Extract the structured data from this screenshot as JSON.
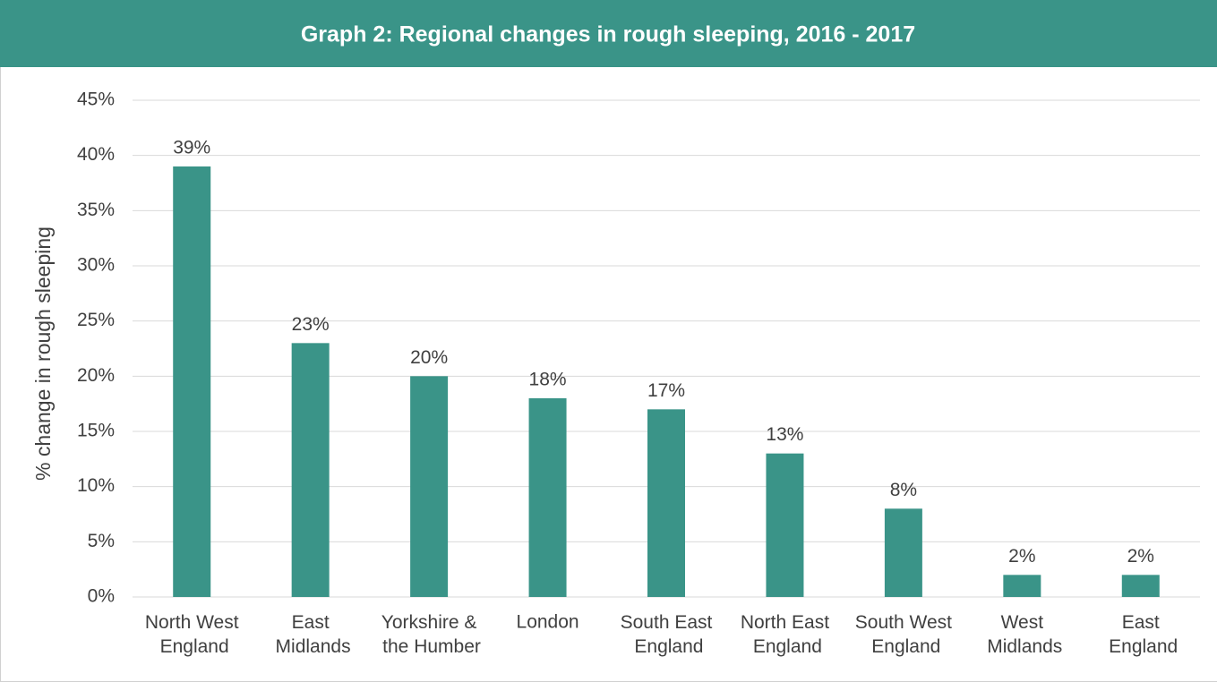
{
  "chart_data": {
    "type": "bar",
    "title": "Graph 2: Regional changes in rough sleeping, 2016 - 2017",
    "y_label": "% change in rough sleeping",
    "categories": [
      "North West England",
      "East Midlands",
      "Yorkshire & the Humber",
      "London",
      "South East England",
      "North East England",
      "South West England",
      "West Midlands",
      "East England"
    ],
    "values": [
      39,
      23,
      20,
      18,
      17,
      13,
      8,
      2,
      2
    ],
    "value_labels": [
      "39%",
      "23%",
      "20%",
      "18%",
      "17%",
      "13%",
      "8%",
      "2%",
      "2%"
    ],
    "color": "#3a9488",
    "ylim": [
      0,
      45
    ],
    "yticks": [
      {
        "value": 0,
        "label": "0%"
      },
      {
        "value": 5,
        "label": "5%"
      },
      {
        "value": 10,
        "label": "10%"
      },
      {
        "value": 15,
        "label": "15%"
      },
      {
        "value": 20,
        "label": "20%"
      },
      {
        "value": 25,
        "label": "25%"
      },
      {
        "value": 30,
        "label": "30%"
      },
      {
        "value": 35,
        "label": "35%"
      },
      {
        "value": 40,
        "label": "40%"
      },
      {
        "value": 45,
        "label": "45%"
      }
    ],
    "grid": true
  }
}
